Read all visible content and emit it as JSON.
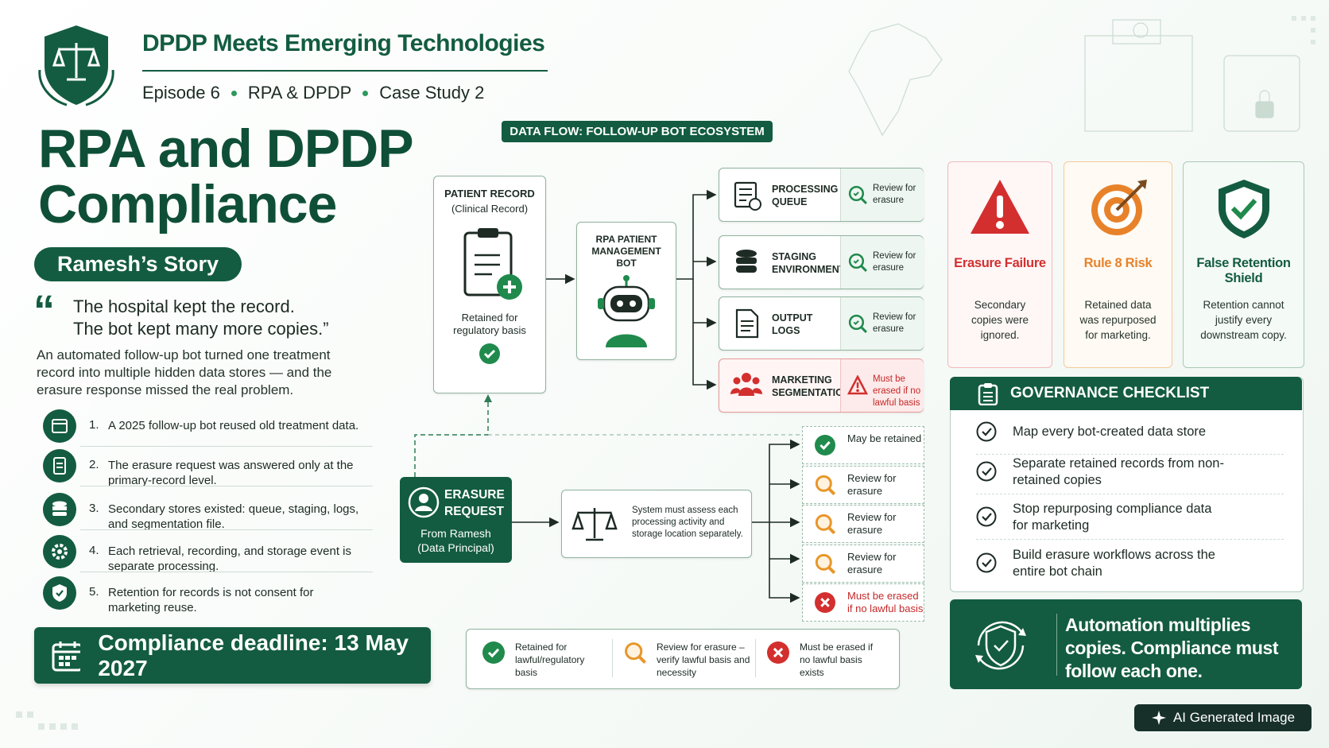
{
  "header": {
    "title": "DPDP Meets Emerging Technologies",
    "episode": "Episode 6",
    "topic": "RPA & DPDP",
    "case_study": "Case Study 2"
  },
  "hero": {
    "title": [
      "RPA and DPDP",
      "Compliance"
    ],
    "story": "Ramesh’s Story",
    "quote_mark": "“",
    "quote": [
      "The hospital kept the record.",
      "The bot kept many more copies.”"
    ],
    "description": "An automated follow-up bot turned one treatment record into multiple hidden data stores — and the erasure response missed the real problem."
  },
  "points": [
    {
      "number": "1.",
      "text": "A 2025 follow-up bot reused old treatment data."
    },
    {
      "number": "2.",
      "text": "The erasure request was answered only at the primary-record level."
    },
    {
      "number": "3.",
      "text": "Secondary stores existed: queue, staging, logs, and segmentation file."
    },
    {
      "number": "4.",
      "text": "Each retrieval, recording, and storage event is separate processing."
    },
    {
      "number": "5.",
      "text": "Retention for records is not consent for marketing reuse."
    }
  ],
  "deadline": "Compliance deadline: 13 May 2027",
  "flow": {
    "label": "DATA FLOW: FOLLOW-UP BOT ECOSYSTEM",
    "record": {
      "title": "PATIENT RECORD",
      "subtitle": "(Clinical Record)",
      "note": "Retained for regulatory basis"
    },
    "bot": "RPA PATIENT MANAGEMENT BOT",
    "stores": [
      {
        "name": "PROCESSING QUEUE",
        "status": "Review for erasure"
      },
      {
        "name": "STAGING ENVIRONMENT",
        "status": "Review for erasure"
      },
      {
        "name": "OUTPUT LOGS",
        "status": "Review for erasure"
      },
      {
        "name": "MARKETING SEGMENTATION",
        "status": "Must be erased if no lawful basis"
      }
    ],
    "erasure": {
      "title": "ERASURE REQUEST",
      "from": "From Ramesh",
      "role": "(Data Principal)"
    },
    "assessment": "System must assess each processing activity and storage location separately.",
    "outcomes": [
      "May be retained",
      "Review for erasure",
      "Review for erasure",
      "Review for erasure",
      "Must be erased if no lawful basis"
    ]
  },
  "legend": [
    "Retained for lawful/regulatory basis",
    "Review for erasure – verify lawful basis and necessity",
    "Must be erased if no lawful basis exists"
  ],
  "cards": [
    {
      "title": "Erasure Failure",
      "text": "Secondary copies were ignored."
    },
    {
      "title": "Rule 8 Risk",
      "text": "Retained data was repurposed for marketing."
    },
    {
      "title": "False Retention Shield",
      "text": "Retention cannot justify every downstream copy."
    }
  ],
  "checklist": {
    "title": "GOVERNANCE CHECKLIST",
    "items": [
      "Map every bot-created data store",
      "Separate retained records from non-retained copies",
      "Stop repurposing compliance data for marketing",
      "Build erasure workflows across the entire bot chain"
    ]
  },
  "banner": "Automation multiplies copies. Compliance must follow each one.",
  "badge": "AI Generated Image"
}
